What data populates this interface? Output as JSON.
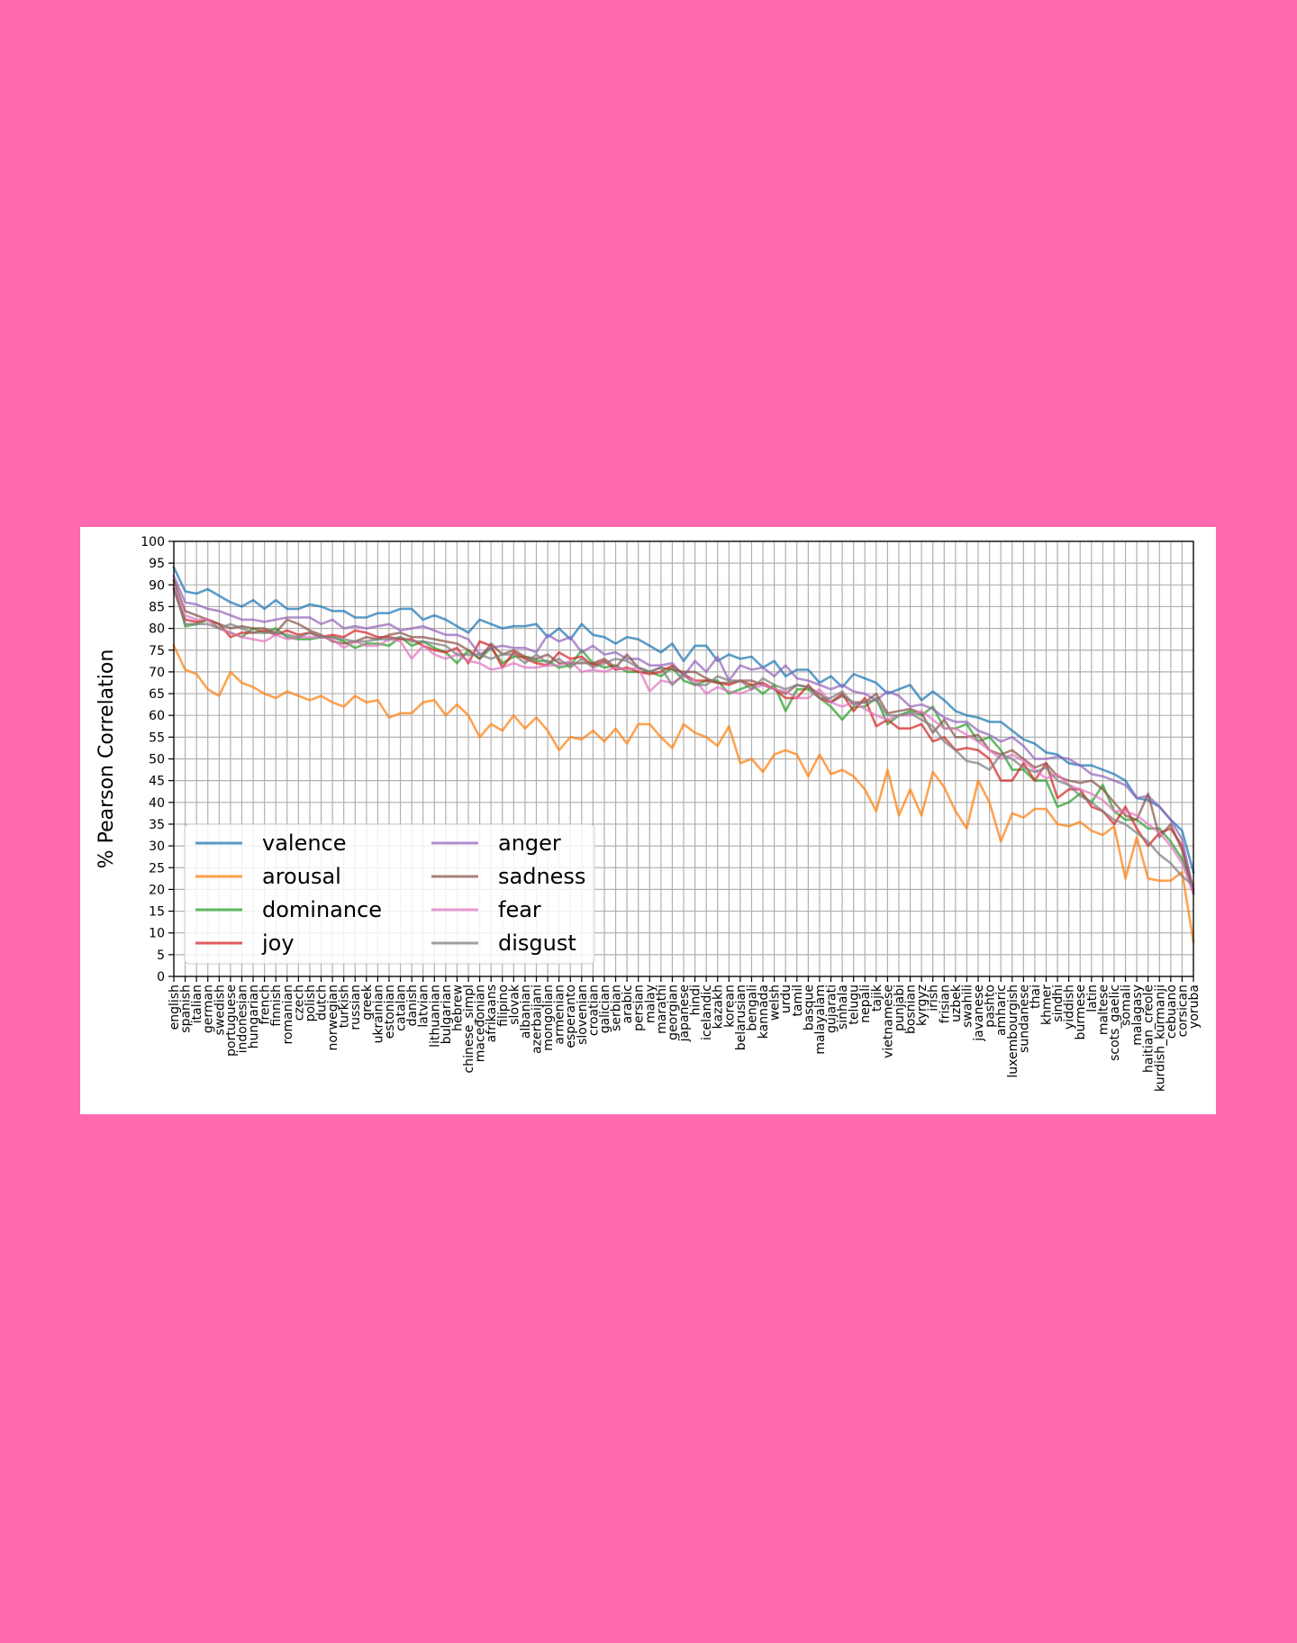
{
  "chart_data": {
    "type": "line",
    "ylabel": "% Pearson Correlation",
    "xlabel": "",
    "ylim": [
      0,
      100
    ],
    "yticks": [
      0,
      5,
      10,
      15,
      20,
      25,
      30,
      35,
      40,
      45,
      50,
      55,
      60,
      65,
      70,
      75,
      80,
      85,
      90,
      95,
      100
    ],
    "grid": true,
    "legend_position": "lower-left",
    "categories": [
      "english",
      "spanish",
      "italian",
      "german",
      "swedish",
      "portuguese",
      "indonesian",
      "hungarian",
      "french",
      "finnish",
      "romanian",
      "czech",
      "polish",
      "dutch",
      "norwegian",
      "turkish",
      "russian",
      "greek",
      "ukrainian",
      "estonian",
      "catalan",
      "danish",
      "latvian",
      "lithuanian",
      "bulgarian",
      "hebrew",
      "chinese_simpl",
      "macedonian",
      "afrikaans",
      "filipino",
      "slovak",
      "albanian",
      "azerbaijani",
      "mongolian",
      "armenian",
      "esperanto",
      "slovenian",
      "croatian",
      "galician",
      "serbian",
      "arabic",
      "persian",
      "malay",
      "marathi",
      "georgian",
      "japanese",
      "hindi",
      "icelandic",
      "kazakh",
      "korean",
      "belarusian",
      "bengali",
      "kannada",
      "welsh",
      "urdu",
      "tamil",
      "basque",
      "malayalam",
      "gujarati",
      "sinhala",
      "telugu",
      "nepali",
      "tajik",
      "vietnamese",
      "punjabi",
      "bosnian",
      "kyrgyz",
      "irish",
      "frisian",
      "uzbek",
      "swahili",
      "javanese",
      "pashto",
      "amharic",
      "luxembourgish",
      "sundanese",
      "thai",
      "khmer",
      "sindhi",
      "yiddish",
      "burmese",
      "latin",
      "maltese",
      "scots_gaelic",
      "somali",
      "malagasy",
      "haitian_creole",
      "kurdish_kurmanji",
      "cebuano",
      "corsican",
      "yoruba"
    ],
    "series": [
      {
        "name": "valence",
        "color": "#1f77b4",
        "values": [
          94,
          88.5,
          88,
          89,
          87.5,
          86,
          85,
          86.5,
          84.5,
          86.5,
          84.5,
          84.5,
          85.5,
          85,
          84,
          84,
          82.5,
          82.5,
          83.5,
          83.5,
          84.5,
          84.5,
          82,
          83,
          82,
          80.5,
          79,
          82,
          81,
          80,
          80.5,
          80.5,
          81,
          78,
          80,
          77.5,
          81,
          78.5,
          78,
          76.5,
          78,
          77.5,
          76,
          74.5,
          76.5,
          72.5,
          76,
          76,
          72.5,
          74,
          73,
          73.5,
          71,
          72.5,
          69,
          70.5,
          70.5,
          67.5,
          69,
          66.5,
          69.5,
          68.5,
          67.5,
          65,
          66,
          67,
          63.5,
          65.5,
          63.5,
          61,
          60,
          59.5,
          58.5,
          58.5,
          56.5,
          54.5,
          53.5,
          51.5,
          51,
          49,
          48.5,
          48.5,
          47.5,
          46.5,
          45,
          41,
          40.5,
          39,
          36,
          33.5,
          24
        ]
      },
      {
        "name": "arousal",
        "color": "#ff7f0e",
        "values": [
          76,
          70.5,
          69.5,
          66,
          64.5,
          70,
          67.5,
          66.5,
          65,
          64,
          65.5,
          64.5,
          63.5,
          64.5,
          63,
          62,
          64.5,
          63,
          63.5,
          59.5,
          60.5,
          60.5,
          63,
          63.5,
          60,
          62.5,
          60,
          55,
          58,
          56.5,
          60,
          57,
          59.5,
          56.5,
          52,
          55,
          54.5,
          56.5,
          54,
          57,
          53.5,
          58,
          58,
          55,
          52.5,
          58,
          56,
          55,
          53,
          57.5,
          49,
          50,
          47,
          51,
          52,
          51,
          46,
          51,
          46.5,
          47.5,
          46,
          43,
          38,
          47.5,
          37,
          43,
          37,
          47,
          43.5,
          38,
          34,
          45,
          40,
          31,
          37.5,
          36.5,
          38.5,
          38.5,
          35,
          34.5,
          35.5,
          33.5,
          32.5,
          34.5,
          22.5,
          32,
          22.5,
          22,
          22,
          24,
          8
        ]
      },
      {
        "name": "dominance",
        "color": "#2ca02c",
        "values": [
          91,
          80.5,
          81,
          82,
          80,
          79,
          78,
          80,
          79,
          80,
          78,
          77.5,
          77.5,
          78,
          78,
          77,
          75.5,
          76.5,
          76.5,
          76,
          78,
          76,
          77,
          75.5,
          74.5,
          72,
          75,
          73,
          75.5,
          72,
          73.5,
          73.5,
          72.5,
          72.5,
          71,
          71.5,
          75,
          72,
          71,
          71.5,
          70,
          70,
          70,
          69,
          71,
          68,
          67,
          68,
          68,
          65,
          66,
          67,
          65,
          67,
          61,
          66,
          66,
          64,
          62,
          59,
          62,
          62,
          64,
          58,
          60,
          61,
          60,
          62,
          57,
          57,
          58,
          54,
          55,
          52,
          47.5,
          47.5,
          45,
          45,
          39,
          40,
          42,
          40,
          44,
          38,
          36,
          36,
          34,
          34,
          31,
          27,
          20
        ]
      },
      {
        "name": "joy",
        "color": "#d62728",
        "values": [
          89,
          82,
          81.5,
          82,
          81,
          78,
          79,
          79,
          79.5,
          78.5,
          79.5,
          78.5,
          79,
          78,
          78.5,
          78,
          79.5,
          79,
          78,
          78,
          77.5,
          77.5,
          76,
          75,
          74.5,
          75.5,
          72,
          77,
          76,
          71,
          74.5,
          73,
          72,
          71.5,
          74.5,
          73,
          73.5,
          71.5,
          72.5,
          70.5,
          71,
          70,
          69.5,
          70,
          71.5,
          69.5,
          68,
          68,
          67.5,
          67,
          68,
          67,
          67.5,
          66,
          64,
          64,
          67,
          64,
          63,
          65,
          61,
          64,
          57.5,
          59,
          57,
          57,
          58,
          54,
          55,
          52,
          52.5,
          52,
          50,
          45,
          45,
          49,
          45,
          49,
          41,
          43,
          43,
          39,
          38,
          35,
          39,
          34,
          30,
          33,
          34,
          30,
          20
        ]
      },
      {
        "name": "anger",
        "color": "#9467bd",
        "values": [
          92,
          86,
          85.5,
          84.5,
          84,
          83,
          82,
          82,
          81.5,
          82,
          82.5,
          82.5,
          82.5,
          81,
          82,
          80,
          80.5,
          80,
          80.5,
          81,
          79.5,
          80,
          80.5,
          79.5,
          78.5,
          78.5,
          77.5,
          74,
          75.5,
          76,
          75.5,
          75.5,
          74.5,
          78.5,
          77,
          78,
          74.5,
          76,
          74,
          74.5,
          73,
          73,
          71.5,
          71.5,
          72,
          69,
          72.5,
          70,
          73.5,
          68,
          71.5,
          70.5,
          71,
          69,
          71.5,
          68.5,
          68,
          67,
          66,
          67,
          65.5,
          65,
          63.5,
          65.5,
          64.5,
          62,
          62.5,
          61.5,
          59.5,
          58.5,
          58.5,
          56.5,
          55.5,
          54,
          55,
          53,
          50,
          50,
          50.5,
          50,
          48.5,
          46.5,
          46,
          45,
          44,
          41,
          41.5,
          39,
          36,
          31.5,
          19.5
        ]
      },
      {
        "name": "sadness",
        "color": "#8c564b",
        "values": [
          91,
          84,
          83,
          82,
          81,
          80,
          80.5,
          80,
          80,
          79,
          82,
          81,
          79.5,
          78.5,
          77,
          76.5,
          77,
          78,
          77.5,
          78.5,
          79,
          78,
          78,
          77.5,
          77,
          76.5,
          75,
          73,
          76.5,
          74,
          75,
          73.5,
          73,
          74,
          72,
          72,
          72,
          72,
          73,
          71,
          74,
          71,
          70,
          71,
          70.5,
          70,
          70,
          68.5,
          67.5,
          67.5,
          68,
          68,
          67,
          66,
          65,
          67,
          66.5,
          65,
          63,
          64.5,
          63,
          63,
          65,
          60.5,
          61,
          61.5,
          60.5,
          56,
          59,
          55,
          55,
          55.5,
          52,
          51,
          52,
          50,
          48,
          49,
          46,
          45,
          44.5,
          45,
          43,
          40,
          37,
          36,
          42,
          32,
          35,
          29,
          19
        ]
      },
      {
        "name": "fear",
        "color": "#e377c2",
        "values": [
          90,
          83,
          82,
          82,
          80,
          79,
          78,
          77.5,
          77,
          78.5,
          77.5,
          78,
          78,
          78,
          77.5,
          75.5,
          77,
          76,
          76,
          77.5,
          77,
          73,
          76,
          74,
          73,
          74,
          72.5,
          72,
          70.5,
          71,
          72,
          71,
          71,
          71.5,
          71.5,
          72.5,
          70,
          70.5,
          70,
          71,
          70.5,
          71,
          65.5,
          68,
          67.5,
          69,
          68,
          65,
          66.5,
          65.5,
          65,
          66,
          67,
          66,
          65.5,
          64,
          64,
          66,
          63,
          62,
          63,
          61.5,
          60,
          59,
          60,
          60,
          61,
          59,
          57,
          57,
          55.5,
          54,
          52,
          50,
          51,
          49.5,
          47.5,
          45.5,
          46.5,
          44,
          43,
          42,
          40.5,
          38,
          38,
          37,
          35,
          33,
          30,
          26,
          19
        ]
      },
      {
        "name": "disgust",
        "color": "#7f7f7f",
        "values": [
          89,
          81,
          81,
          81,
          80,
          81,
          80,
          79,
          79,
          79,
          78.5,
          78,
          79,
          78,
          78,
          77.5,
          77,
          77,
          77.5,
          77.5,
          78,
          77,
          77,
          76.5,
          76,
          74,
          74,
          74,
          73,
          74,
          74,
          72,
          74,
          72,
          73,
          71,
          73,
          71,
          72,
          73,
          72.5,
          71,
          70,
          71,
          67,
          69.5,
          67,
          67,
          69,
          68,
          68,
          66,
          68.5,
          67,
          66,
          67,
          66.5,
          64,
          64,
          65.5,
          62.5,
          63,
          63.5,
          60,
          60,
          60.5,
          59,
          57.5,
          54,
          52,
          49.5,
          49,
          47.5,
          51,
          50,
          48,
          47,
          48,
          45,
          44,
          41.5,
          40,
          38,
          36,
          35,
          33,
          31,
          28,
          26,
          23,
          21
        ]
      }
    ]
  }
}
